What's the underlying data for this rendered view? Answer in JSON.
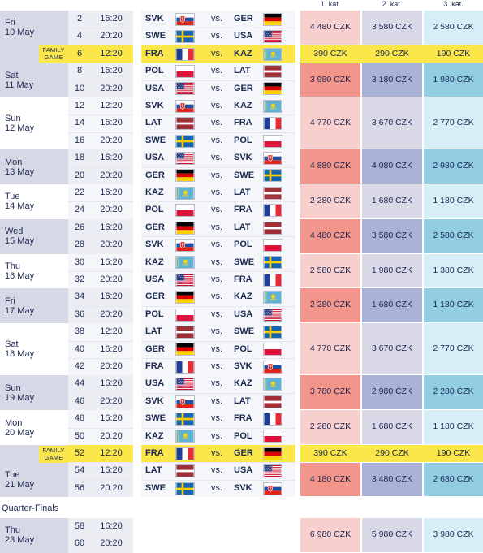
{
  "header": {
    "cat1": "1. kat.",
    "cat2": "2. kat.",
    "cat3": "3. kat."
  },
  "family_label_1": "FAMILY",
  "family_label_2": "GAME",
  "vs_label": "vs.",
  "currency": "CZK",
  "quarter_finals_label": "Quarter-Finals",
  "colors": {
    "day_band": "#d6d8e5",
    "family_yellow": "#fbe74a",
    "price1_light": "#f9cfcd",
    "price1_dark": "#f2958b",
    "price2_light": "#d8d8e7",
    "price2_dark": "#a9b3d7",
    "price3_light": "#d7eef6",
    "price3_dark": "#93cde3",
    "text": "#1c2a52"
  },
  "days": [
    {
      "d1": "Fri",
      "d2": "10 May",
      "shade": true,
      "rows": [
        {
          "num": "2",
          "time": "16:20",
          "home": "SVK",
          "away": "GER"
        },
        {
          "num": "4",
          "time": "20:20",
          "home": "SWE",
          "away": "USA"
        }
      ],
      "price": {
        "p1": "4 480 CZK",
        "p2": "3 580 CZK",
        "p3": "2 580 CZK",
        "tone": "light"
      }
    },
    {
      "d1": "Sat",
      "d2": "11 May",
      "shade": true,
      "family_first": true,
      "family_price": {
        "p1": "390 CZK",
        "p2": "290 CZK",
        "p3": "190 CZK"
      },
      "rows": [
        {
          "num": "6",
          "time": "12:20",
          "home": "FRA",
          "away": "KAZ",
          "family": true
        },
        {
          "num": "8",
          "time": "16:20",
          "home": "POL",
          "away": "LAT"
        },
        {
          "num": "10",
          "time": "20:20",
          "home": "USA",
          "away": "GER"
        }
      ],
      "price": {
        "p1": "3 980 CZK",
        "p2": "3 180 CZK",
        "p3": "1 980 CZK",
        "tone": "dark"
      }
    },
    {
      "d1": "Sun",
      "d2": "12 May",
      "shade": false,
      "rows": [
        {
          "num": "12",
          "time": "12:20",
          "home": "SVK",
          "away": "KAZ"
        },
        {
          "num": "14",
          "time": "16:20",
          "home": "LAT",
          "away": "FRA"
        },
        {
          "num": "16",
          "time": "20:20",
          "home": "SWE",
          "away": "POL"
        }
      ],
      "price": {
        "p1": "4 770 CZK",
        "p2": "3 670 CZK",
        "p3": "2 770 CZK",
        "tone": "light"
      }
    },
    {
      "d1": "Mon",
      "d2": "13 May",
      "shade": true,
      "rows": [
        {
          "num": "18",
          "time": "16:20",
          "home": "USA",
          "away": "SVK"
        },
        {
          "num": "20",
          "time": "20:20",
          "home": "GER",
          "away": "SWE"
        }
      ],
      "price": {
        "p1": "4 880 CZK",
        "p2": "4 080 CZK",
        "p3": "2 980 CZK",
        "tone": "dark"
      }
    },
    {
      "d1": "Tue",
      "d2": "14 May",
      "shade": false,
      "rows": [
        {
          "num": "22",
          "time": "16:20",
          "home": "KAZ",
          "away": "LAT"
        },
        {
          "num": "24",
          "time": "20:20",
          "home": "POL",
          "away": "FRA"
        }
      ],
      "price": {
        "p1": "2 280 CZK",
        "p2": "1 680 CZK",
        "p3": "1 180 CZK",
        "tone": "light"
      }
    },
    {
      "d1": "Wed",
      "d2": "15 May",
      "shade": true,
      "rows": [
        {
          "num": "26",
          "time": "16:20",
          "home": "GER",
          "away": "LAT"
        },
        {
          "num": "28",
          "time": "20:20",
          "home": "SVK",
          "away": "POL"
        }
      ],
      "price": {
        "p1": "4 480 CZK",
        "p2": "3 580 CZK",
        "p3": "2 580 CZK",
        "tone": "dark"
      }
    },
    {
      "d1": "Thu",
      "d2": "16 May",
      "shade": false,
      "rows": [
        {
          "num": "30",
          "time": "16:20",
          "home": "KAZ",
          "away": "SWE"
        },
        {
          "num": "32",
          "time": "20:20",
          "home": "USA",
          "away": "FRA"
        }
      ],
      "price": {
        "p1": "2 580 CZK",
        "p2": "1 980 CZK",
        "p3": "1 380 CZK",
        "tone": "light"
      }
    },
    {
      "d1": "Fri",
      "d2": "17 May",
      "shade": true,
      "rows": [
        {
          "num": "34",
          "time": "16:20",
          "home": "GER",
          "away": "KAZ"
        },
        {
          "num": "36",
          "time": "20:20",
          "home": "POL",
          "away": "USA"
        }
      ],
      "price": {
        "p1": "2 280 CZK",
        "p2": "1 680 CZK",
        "p3": "1 180 CZK",
        "tone": "dark"
      }
    },
    {
      "d1": "Sat",
      "d2": "18 May",
      "shade": false,
      "rows": [
        {
          "num": "38",
          "time": "12:20",
          "home": "LAT",
          "away": "SWE"
        },
        {
          "num": "40",
          "time": "16:20",
          "home": "GER",
          "away": "POL"
        },
        {
          "num": "42",
          "time": "20:20",
          "home": "FRA",
          "away": "SVK"
        }
      ],
      "price": {
        "p1": "4 770 CZK",
        "p2": "3 670 CZK",
        "p3": "2 770 CZK",
        "tone": "light"
      }
    },
    {
      "d1": "Sun",
      "d2": "19 May",
      "shade": true,
      "rows": [
        {
          "num": "44",
          "time": "16:20",
          "home": "USA",
          "away": "KAZ"
        },
        {
          "num": "46",
          "time": "20:20",
          "home": "SVK",
          "away": "LAT"
        }
      ],
      "price": {
        "p1": "3 780 CZK",
        "p2": "2 980 CZK",
        "p3": "2 280 CZK",
        "tone": "dark"
      }
    },
    {
      "d1": "Mon",
      "d2": "20 May",
      "shade": false,
      "rows": [
        {
          "num": "48",
          "time": "16:20",
          "home": "SWE",
          "away": "FRA"
        },
        {
          "num": "50",
          "time": "20:20",
          "home": "KAZ",
          "away": "POL"
        }
      ],
      "price": {
        "p1": "2 280 CZK",
        "p2": "1 680 CZK",
        "p3": "1 180 CZK",
        "tone": "light"
      }
    },
    {
      "d1": "Tue",
      "d2": "21 May",
      "shade": true,
      "family_first": true,
      "family_price": {
        "p1": "390 CZK",
        "p2": "290 CZK",
        "p3": "190 CZK"
      },
      "rows": [
        {
          "num": "52",
          "time": "12:20",
          "home": "FRA",
          "away": "GER",
          "family": true
        },
        {
          "num": "54",
          "time": "16:20",
          "home": "LAT",
          "away": "USA"
        },
        {
          "num": "56",
          "time": "20:20",
          "home": "SWE",
          "away": "SVK"
        }
      ],
      "price": {
        "p1": "4 180 CZK",
        "p2": "3 480 CZK",
        "p3": "2 680 CZK",
        "tone": "dark"
      }
    }
  ],
  "quarter_finals": {
    "d1": "Thu",
    "d2": "23 May",
    "shade": true,
    "rows": [
      {
        "num": "58",
        "time": "16:20"
      },
      {
        "num": "60",
        "time": "20:20"
      }
    ],
    "price": {
      "p1": "6 980 CZK",
      "p2": "5 980 CZK",
      "p3": "3 980 CZK",
      "tone": "light"
    }
  }
}
